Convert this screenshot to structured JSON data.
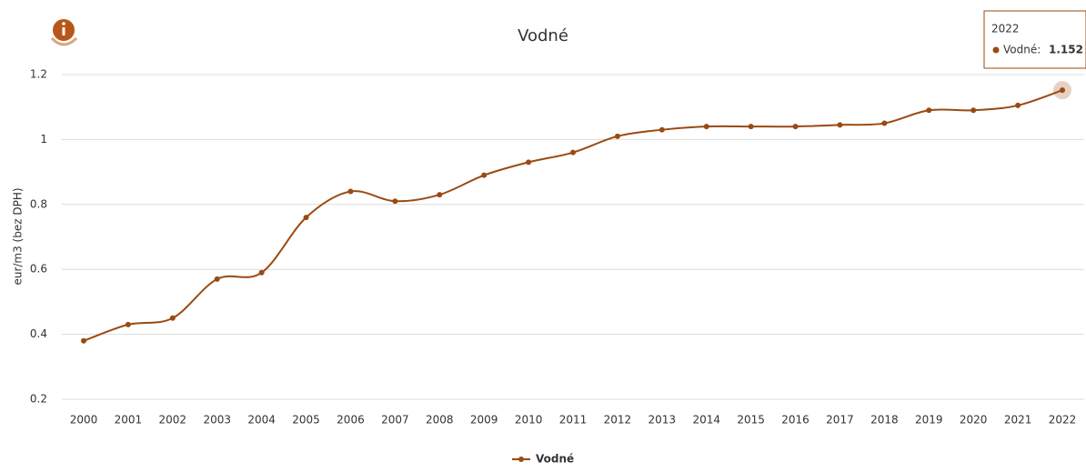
{
  "chart_data": {
    "type": "line",
    "title": "Vodné",
    "y_label": "eur/m3 (bez DPH)",
    "categories": [
      "2000",
      "2001",
      "2002",
      "2003",
      "2004",
      "2005",
      "2006",
      "2007",
      "2008",
      "2009",
      "2010",
      "2011",
      "2012",
      "2013",
      "2014",
      "2015",
      "2016",
      "2017",
      "2018",
      "2019",
      "2020",
      "2021",
      "2022"
    ],
    "series": [
      {
        "name": "Vodné",
        "color": "#9a4a12",
        "values": [
          0.38,
          0.43,
          0.45,
          0.57,
          0.59,
          0.76,
          0.84,
          0.81,
          0.83,
          0.89,
          0.93,
          0.96,
          1.01,
          1.03,
          1.04,
          1.04,
          1.04,
          1.045,
          1.05,
          1.09,
          1.09,
          1.105,
          1.152
        ]
      }
    ],
    "ylim": [
      0.2,
      1.2
    ],
    "yticks": [
      0.2,
      0.4,
      0.6,
      0.8,
      1,
      1.2
    ],
    "grid": true,
    "legend": "bottom",
    "tooltip": {
      "title": "2022",
      "label": "Vodné:",
      "value": "1.152"
    }
  }
}
